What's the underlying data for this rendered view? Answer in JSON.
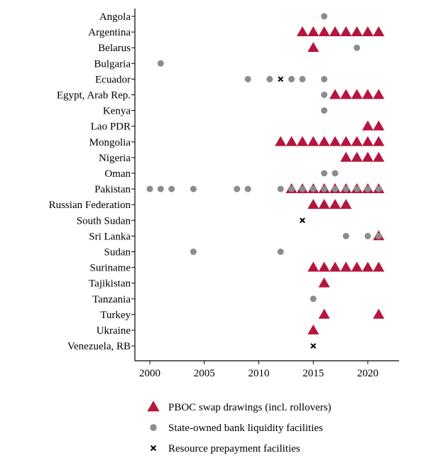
{
  "chart_data": {
    "type": "scatter",
    "x_axis": {
      "range": [
        1999,
        2022
      ],
      "ticks": [
        2000,
        2005,
        2010,
        2015,
        2020
      ]
    },
    "countries": [
      "Angola",
      "Argentina",
      "Belarus",
      "Bulgaria",
      "Ecuador",
      "Egypt, Arab Rep.",
      "Kenya",
      "Lao PDR",
      "Mongolia",
      "Nigeria",
      "Oman",
      "Pakistan",
      "Russian Federation",
      "South Sudan",
      "Sri Lanka",
      "Sudan",
      "Suriname",
      "Tajikistan",
      "Tanzania",
      "Turkey",
      "Ukraine",
      "Venezuela, RB"
    ],
    "legend": {
      "placement": "bottom",
      "entries": [
        "PBOC swap drawings (incl. rollovers)",
        "State-owned bank liquidity facilities",
        "Resource prepayment facilities"
      ]
    },
    "colors": {
      "triangle": "#b5153e",
      "circle": "#8c8c8c",
      "cross": "#000000"
    },
    "series": [
      {
        "marker": "triangle",
        "points": [
          {
            "country": "Argentina",
            "years": [
              2014,
              2015,
              2016,
              2017,
              2018,
              2019,
              2020,
              2021
            ]
          },
          {
            "country": "Belarus",
            "years": [
              2015
            ]
          },
          {
            "country": "Egypt, Arab Rep.",
            "years": [
              2017,
              2018,
              2019,
              2020,
              2021
            ]
          },
          {
            "country": "Lao PDR",
            "years": [
              2020,
              2021
            ]
          },
          {
            "country": "Mongolia",
            "years": [
              2012,
              2013,
              2014,
              2015,
              2016,
              2017,
              2018,
              2019,
              2020,
              2021
            ]
          },
          {
            "country": "Nigeria",
            "years": [
              2018,
              2019,
              2020,
              2021
            ]
          },
          {
            "country": "Pakistan",
            "years": [
              2013,
              2014,
              2015,
              2016,
              2017,
              2018,
              2019,
              2020,
              2021
            ]
          },
          {
            "country": "Russian Federation",
            "years": [
              2015,
              2016,
              2017,
              2018
            ]
          },
          {
            "country": "Sri Lanka",
            "years": [
              2021
            ]
          },
          {
            "country": "Suriname",
            "years": [
              2015,
              2016,
              2017,
              2018,
              2019,
              2020,
              2021
            ]
          },
          {
            "country": "Tajikistan",
            "years": [
              2016
            ]
          },
          {
            "country": "Turkey",
            "years": [
              2016,
              2021
            ]
          },
          {
            "country": "Ukraine",
            "years": [
              2015
            ]
          }
        ]
      },
      {
        "marker": "circle",
        "points": [
          {
            "country": "Angola",
            "years": [
              2016
            ]
          },
          {
            "country": "Belarus",
            "years": [
              2019
            ]
          },
          {
            "country": "Bulgaria",
            "years": [
              2001
            ]
          },
          {
            "country": "Ecuador",
            "years": [
              2009,
              2011,
              2013,
              2014,
              2016
            ]
          },
          {
            "country": "Egypt, Arab Rep.",
            "years": [
              2016
            ]
          },
          {
            "country": "Kenya",
            "years": [
              2016
            ]
          },
          {
            "country": "Oman",
            "years": [
              2016,
              2017
            ]
          },
          {
            "country": "Pakistan",
            "years": [
              2000,
              2001,
              2002,
              2004,
              2008,
              2009,
              2012,
              2013,
              2014,
              2015,
              2016,
              2017,
              2018,
              2019,
              2020,
              2021
            ]
          },
          {
            "country": "Sri Lanka",
            "years": [
              2018,
              2020,
              2021
            ]
          },
          {
            "country": "Sudan",
            "years": [
              2004,
              2012
            ]
          },
          {
            "country": "Tanzania",
            "years": [
              2015
            ]
          }
        ]
      },
      {
        "marker": "cross",
        "points": [
          {
            "country": "Ecuador",
            "years": [
              2012
            ]
          },
          {
            "country": "South Sudan",
            "years": [
              2014
            ]
          },
          {
            "country": "Venezuela, RB",
            "years": [
              2015
            ]
          }
        ]
      }
    ]
  }
}
